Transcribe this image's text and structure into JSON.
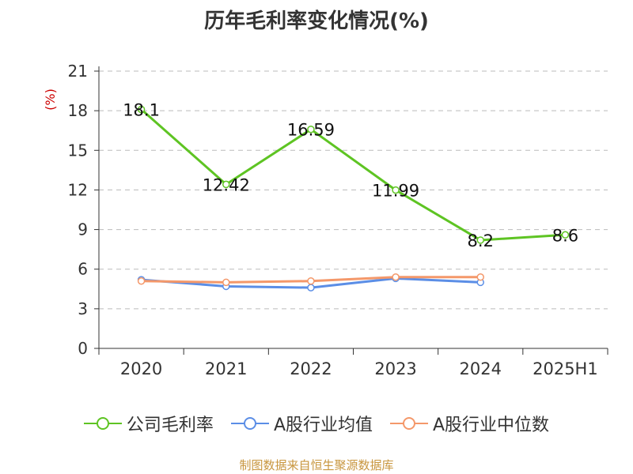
{
  "chart_data": {
    "type": "line",
    "title": "历年毛利率变化情况(%)",
    "ylabel": "(%)",
    "categories": [
      "2020",
      "2021",
      "2022",
      "2023",
      "2024",
      "2025H1"
    ],
    "ylim": [
      0,
      21
    ],
    "yticks": [
      "0",
      "3",
      "6",
      "9",
      "12",
      "15",
      "18",
      "21"
    ],
    "grid": true,
    "legend_position": "bottom",
    "series": [
      {
        "name": "公司毛利率",
        "color": "#5ec423",
        "values": [
          18.1,
          12.42,
          16.59,
          11.99,
          8.2,
          8.6
        ],
        "labels": [
          "18.1",
          "12.42",
          "16.59",
          "11.99",
          "8.2",
          "8.6"
        ]
      },
      {
        "name": "A股行业均值",
        "color": "#5b8ee6",
        "values": [
          5.2,
          4.7,
          4.6,
          5.3,
          5.0,
          null
        ]
      },
      {
        "name": "A股行业中位数",
        "color": "#f4986a",
        "values": [
          5.1,
          5.0,
          5.1,
          5.4,
          5.4,
          null
        ]
      }
    ]
  },
  "source_text": "制图数据来自恒生聚源数据库"
}
